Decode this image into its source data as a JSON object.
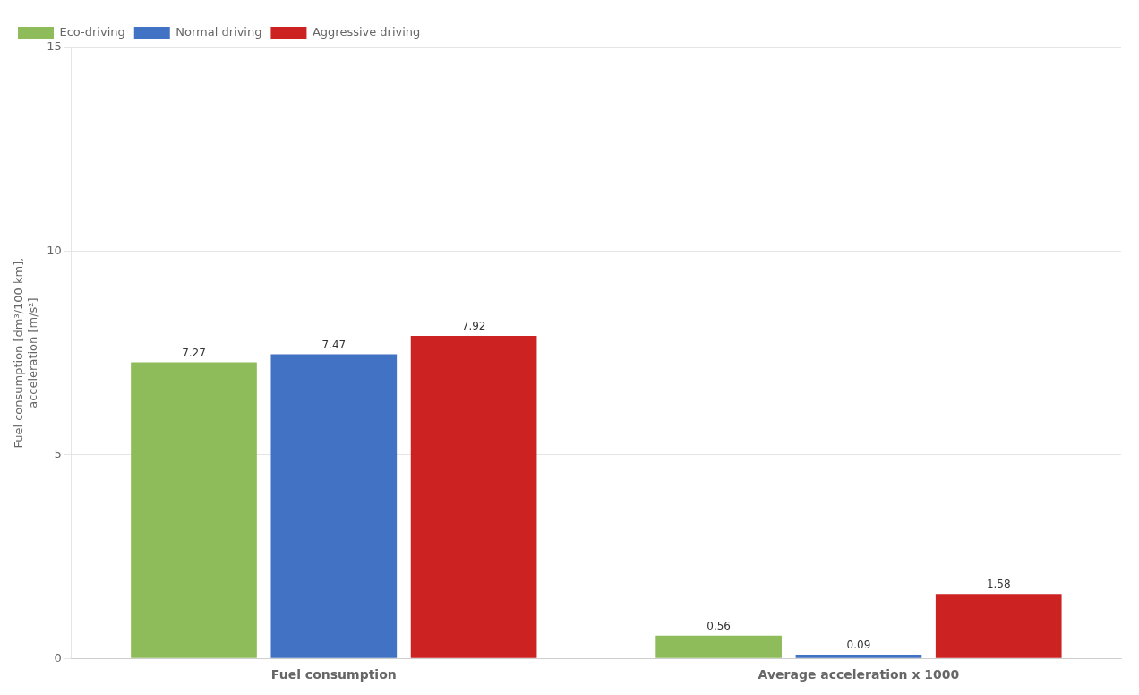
{
  "chart_data": {
    "type": "bar",
    "categories": [
      "Fuel consumption",
      "Average acceleration x 1000"
    ],
    "series": [
      {
        "name": "Eco-driving",
        "color": "#8fbc5a",
        "values": [
          7.27,
          0.56
        ]
      },
      {
        "name": "Normal driving",
        "color": "#4272c4",
        "values": [
          7.47,
          0.09
        ]
      },
      {
        "name": "Aggressive driving",
        "color": "#cc2222",
        "values": [
          7.92,
          1.58
        ]
      }
    ],
    "ylim": [
      0,
      15
    ],
    "yticks": [
      0,
      5,
      10,
      15
    ],
    "ylabel": "Fuel consumption [dm³/100 km],\nacceleration [m/s²]",
    "grid": true,
    "legend": "upper left",
    "data_labels": true
  }
}
